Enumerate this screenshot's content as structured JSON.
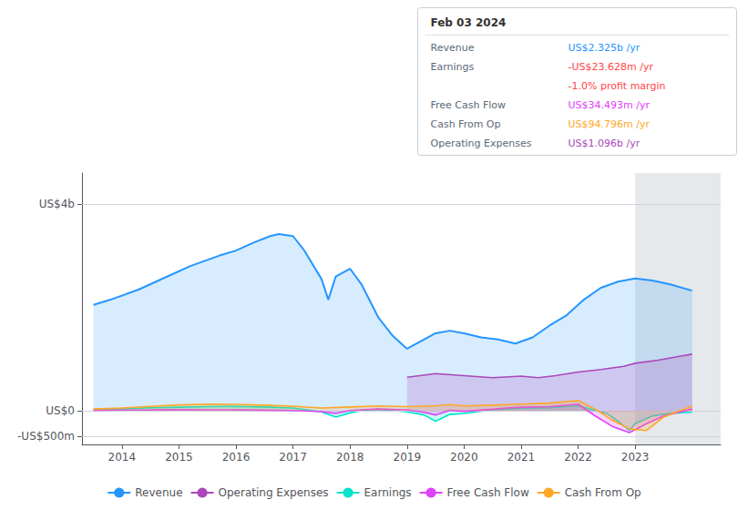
{
  "chart_data": {
    "type": "area",
    "xlim": [
      2013.3,
      2024.5
    ],
    "xticks": [
      2014,
      2015,
      2016,
      2017,
      2018,
      2019,
      2020,
      2021,
      2022,
      2023
    ],
    "ylim": [
      -650000000,
      4600000000
    ],
    "yticks": [
      {
        "value": 4000000000,
        "label": "US$4b"
      },
      {
        "value": 0,
        "label": "US$0"
      },
      {
        "value": -500000000,
        "label": "-US$500m"
      }
    ],
    "grid": true,
    "shaded_region": {
      "from": 2023.0,
      "to": 2024.5
    },
    "series": [
      {
        "name": "Revenue",
        "color": "#2596ff",
        "x": [
          2013.5,
          2013.8,
          2014.3,
          2014.8,
          2015.2,
          2015.7,
          2016.0,
          2016.3,
          2016.6,
          2016.75,
          2017.0,
          2017.2,
          2017.5,
          2017.62,
          2017.75,
          2018.0,
          2018.2,
          2018.5,
          2018.75,
          2019.0,
          2019.5,
          2019.75,
          2020.0,
          2020.3,
          2020.6,
          2020.9,
          2021.2,
          2021.5,
          2021.8,
          2022.1,
          2022.4,
          2022.7,
          2023.0,
          2023.3,
          2023.6,
          2024.0
        ],
        "values": [
          2050000000,
          2150000000,
          2350000000,
          2600000000,
          2800000000,
          3000000000,
          3100000000,
          3250000000,
          3380000000,
          3420000000,
          3380000000,
          3100000000,
          2550000000,
          2150000000,
          2600000000,
          2750000000,
          2450000000,
          1800000000,
          1450000000,
          1200000000,
          1500000000,
          1550000000,
          1500000000,
          1420000000,
          1380000000,
          1300000000,
          1420000000,
          1650000000,
          1850000000,
          2150000000,
          2380000000,
          2500000000,
          2560000000,
          2520000000,
          2450000000,
          2325000000
        ]
      },
      {
        "name": "Operating Expenses",
        "color": "#ab47bc",
        "x": [
          2019.0,
          2019.5,
          2020.0,
          2020.5,
          2021.0,
          2021.3,
          2021.6,
          2022.0,
          2022.4,
          2022.8,
          2023.0,
          2023.4,
          2023.8,
          2024.0
        ],
        "values": [
          650000000,
          720000000,
          680000000,
          640000000,
          670000000,
          640000000,
          680000000,
          750000000,
          800000000,
          860000000,
          920000000,
          980000000,
          1060000000,
          1096000000
        ]
      },
      {
        "name": "Earnings",
        "color": "#00e5cc",
        "x": [
          2013.5,
          2014.0,
          2014.5,
          2015.0,
          2015.5,
          2016.0,
          2016.5,
          2017.0,
          2017.5,
          2017.75,
          2018.0,
          2018.25,
          2018.5,
          2019.0,
          2019.3,
          2019.5,
          2019.75,
          2020.0,
          2020.5,
          2020.75,
          2021.0,
          2021.5,
          2022.0,
          2022.5,
          2022.7,
          2022.9,
          2023.0,
          2023.3,
          2023.6,
          2024.0
        ],
        "values": [
          25000000,
          40000000,
          60000000,
          70000000,
          80000000,
          85000000,
          75000000,
          55000000,
          -20000000,
          -120000000,
          -40000000,
          15000000,
          30000000,
          -20000000,
          -80000000,
          -200000000,
          -70000000,
          -50000000,
          20000000,
          40000000,
          50000000,
          60000000,
          100000000,
          -50000000,
          -200000000,
          -380000000,
          -250000000,
          -100000000,
          -50000000,
          -23628000
        ]
      },
      {
        "name": "Free Cash Flow",
        "color": "#e040fb",
        "x": [
          2013.5,
          2014.0,
          2014.5,
          2015.0,
          2015.5,
          2016.0,
          2016.5,
          2017.0,
          2017.5,
          2017.75,
          2018.0,
          2018.25,
          2018.5,
          2019.0,
          2019.3,
          2019.5,
          2019.75,
          2020.0,
          2020.5,
          2020.75,
          2021.0,
          2021.5,
          2022.0,
          2022.3,
          2022.6,
          2022.9,
          2023.2,
          2023.5,
          2024.0
        ],
        "values": [
          10000000,
          15000000,
          18000000,
          22000000,
          20000000,
          18000000,
          12000000,
          5000000,
          -15000000,
          -50000000,
          5000000,
          25000000,
          35000000,
          20000000,
          -30000000,
          -80000000,
          10000000,
          -10000000,
          30000000,
          55000000,
          70000000,
          80000000,
          130000000,
          -100000000,
          -300000000,
          -420000000,
          -250000000,
          -100000000,
          34493000
        ]
      },
      {
        "name": "Cash From Op",
        "color": "#ffa726",
        "x": [
          2013.5,
          2014.0,
          2014.5,
          2015.0,
          2015.5,
          2016.0,
          2016.3,
          2016.6,
          2017.0,
          2017.5,
          2018.0,
          2018.5,
          2019.0,
          2019.5,
          2019.75,
          2020.0,
          2020.5,
          2021.0,
          2021.5,
          2022.0,
          2022.3,
          2022.6,
          2022.9,
          2023.2,
          2023.5,
          2024.0
        ],
        "values": [
          35000000,
          55000000,
          85000000,
          115000000,
          130000000,
          125000000,
          115000000,
          105000000,
          90000000,
          55000000,
          75000000,
          95000000,
          80000000,
          100000000,
          120000000,
          95000000,
          110000000,
          130000000,
          150000000,
          200000000,
          30000000,
          -180000000,
          -350000000,
          -380000000,
          -120000000,
          94796000
        ]
      }
    ],
    "annotation": {
      "title": "Feb 03 2024",
      "rows": [
        {
          "label": "Revenue",
          "value": "US$2.325b /yr",
          "color": "#2596ff"
        },
        {
          "label": "Earnings",
          "value": "-US$23.628m /yr",
          "color": "#ff4444"
        },
        {
          "value": "-1.0% profit margin",
          "color": "#ff4444"
        },
        {
          "label": "Free Cash Flow",
          "value": "US$34.493m /yr",
          "color": "#e040fb"
        },
        {
          "label": "Cash From Op",
          "value": "US$94.796m /yr",
          "color": "#ffa726"
        },
        {
          "label": "Operating Expenses",
          "value": "US$1.096b /yr",
          "color": "#ab47bc"
        }
      ]
    }
  }
}
